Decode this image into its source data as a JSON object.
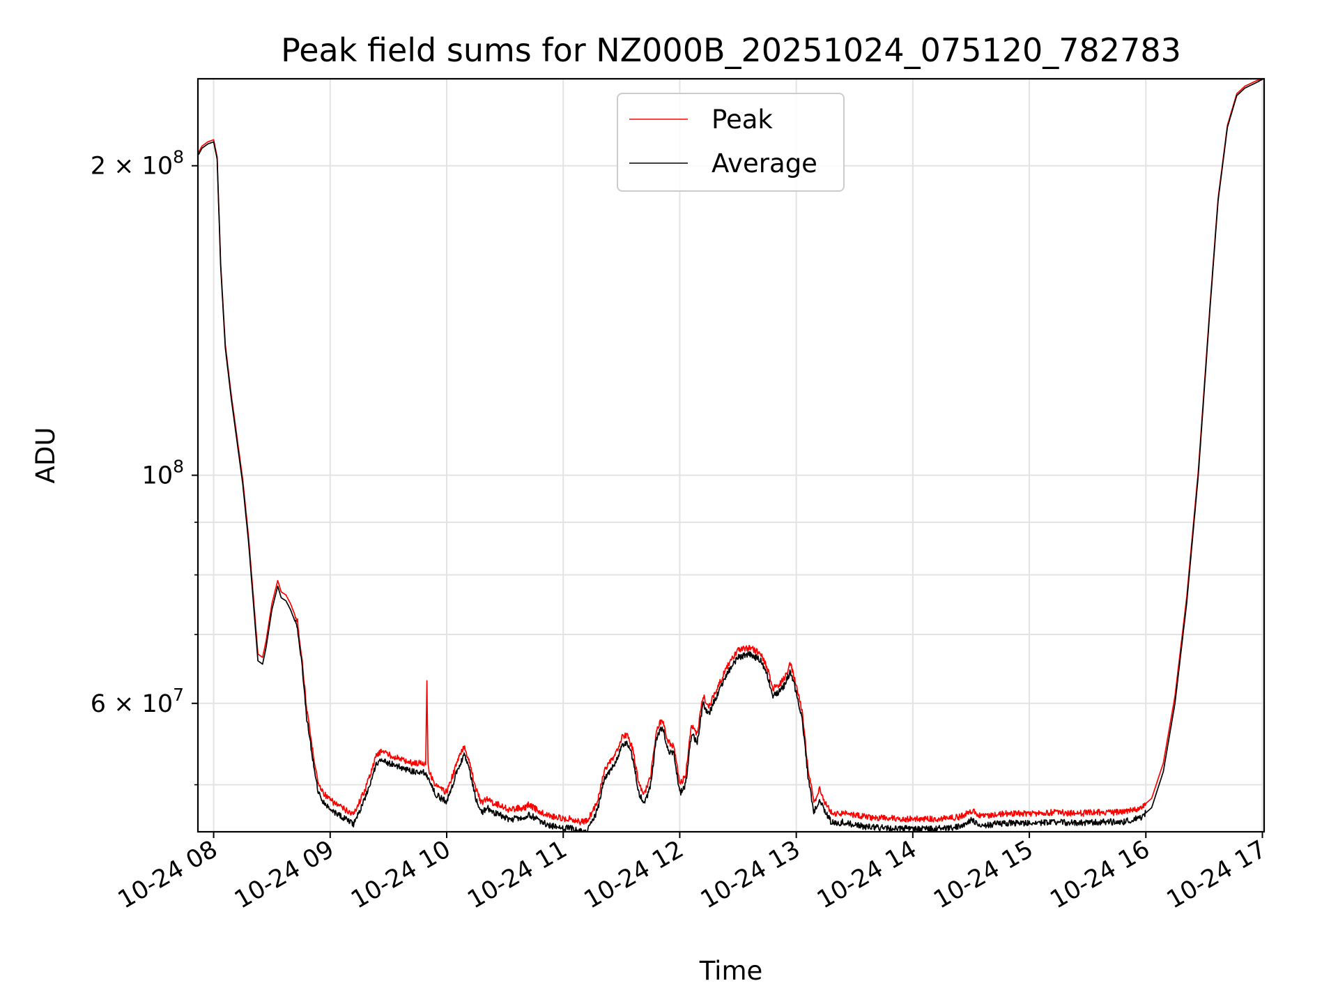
{
  "chart_data": {
    "type": "line",
    "title": "Peak field sums for NZ000B_20251024_075120_782783",
    "xlabel": "Time",
    "ylabel": "ADU",
    "yscale": "log",
    "xlim_hours": [
      7.865,
      17.015
    ],
    "ylim": [
      45000000,
      243000000
    ],
    "grid": true,
    "legend_position": "top-center",
    "x_ticks": [
      {
        "hour": 8,
        "label": "10-24 08"
      },
      {
        "hour": 9,
        "label": "10-24 09"
      },
      {
        "hour": 10,
        "label": "10-24 10"
      },
      {
        "hour": 11,
        "label": "10-24 11"
      },
      {
        "hour": 12,
        "label": "10-24 12"
      },
      {
        "hour": 13,
        "label": "10-24 13"
      },
      {
        "hour": 14,
        "label": "10-24 14"
      },
      {
        "hour": 15,
        "label": "10-24 15"
      },
      {
        "hour": 16,
        "label": "10-24 16"
      },
      {
        "hour": 17,
        "label": "10-24 17"
      }
    ],
    "y_major_ticks": [
      {
        "value": 60000000,
        "mantissa": "6",
        "exponent": "7"
      },
      {
        "value": 100000000,
        "mantissa": "",
        "exponent": "8"
      },
      {
        "value": 200000000,
        "mantissa": "2",
        "exponent": "8"
      }
    ],
    "y_minor_ticks": [
      50000000,
      70000000,
      80000000,
      90000000
    ],
    "times_label_mult": "×",
    "times_label_base": "10",
    "series": [
      {
        "name": "Average",
        "color": "#000000",
        "x": [
          7.87,
          7.9,
          7.95,
          8.0,
          8.03,
          8.06,
          8.1,
          8.15,
          8.2,
          8.25,
          8.3,
          8.35,
          8.38,
          8.42,
          8.45,
          8.5,
          8.55,
          8.58,
          8.62,
          8.66,
          8.72,
          8.76,
          8.8,
          8.85,
          8.9,
          8.95,
          9.0,
          9.1,
          9.2,
          9.3,
          9.4,
          9.45,
          9.5,
          9.6,
          9.7,
          9.8,
          9.85,
          9.9,
          9.95,
          10.0,
          10.05,
          10.1,
          10.15,
          10.2,
          10.25,
          10.3,
          10.35,
          10.4,
          10.45,
          10.5,
          10.55,
          10.6,
          10.65,
          10.7,
          10.75,
          10.8,
          10.85,
          10.9,
          10.95,
          11.0,
          11.05,
          11.1,
          11.15,
          11.2,
          11.25,
          11.3,
          11.35,
          11.4,
          11.45,
          11.5,
          11.55,
          11.6,
          11.65,
          11.7,
          11.75,
          11.8,
          11.85,
          11.9,
          11.95,
          12.0,
          12.05,
          12.1,
          12.15,
          12.2,
          12.25,
          12.3,
          12.35,
          12.4,
          12.5,
          12.6,
          12.7,
          12.75,
          12.8,
          12.85,
          12.9,
          12.95,
          13.0,
          13.05,
          13.1,
          13.15,
          13.2,
          13.25,
          13.3,
          13.35,
          13.4,
          13.5,
          13.6,
          13.8,
          14.0,
          14.2,
          14.4,
          14.5,
          14.6,
          14.7,
          14.8,
          15.0,
          15.2,
          15.4,
          15.6,
          15.8,
          15.95,
          16.05,
          16.15,
          16.25,
          16.35,
          16.45,
          16.55,
          16.62,
          16.7,
          16.78,
          16.85,
          16.95,
          17.01
        ],
        "values": [
          205000000,
          208000000,
          210000000,
          211000000,
          203000000,
          160000000,
          133000000,
          119000000,
          108000000,
          98000000,
          86000000,
          73000000,
          66000000,
          65500000,
          68000000,
          74000000,
          78000000,
          76000000,
          75500000,
          74000000,
          71000000,
          65000000,
          58000000,
          53000000,
          49000000,
          48000000,
          47300000,
          46500000,
          45800000,
          48500000,
          52500000,
          53000000,
          52500000,
          52000000,
          51500000,
          51500000,
          50500000,
          49000000,
          48500000,
          48200000,
          50000000,
          52000000,
          53500000,
          51500000,
          48500000,
          47000000,
          47500000,
          47000000,
          46800000,
          46500000,
          46200000,
          46500000,
          46300000,
          46800000,
          46500000,
          46000000,
          45800000,
          45600000,
          45500000,
          45300000,
          45400000,
          45200000,
          45000000,
          45100000,
          46000000,
          47500000,
          50500000,
          51500000,
          52500000,
          54500000,
          55000000,
          53000000,
          49000000,
          48000000,
          50000000,
          55500000,
          57000000,
          54000000,
          53500000,
          49000000,
          50000000,
          56000000,
          55000000,
          60000000,
          58500000,
          60500000,
          62000000,
          64000000,
          66500000,
          67000000,
          66000000,
          64000000,
          61000000,
          61500000,
          62500000,
          64500000,
          61500000,
          58000000,
          51000000,
          47000000,
          48500000,
          47000000,
          46000000,
          45800000,
          46000000,
          45700000,
          45500000,
          45400000,
          45300000,
          45300000,
          45500000,
          46200000,
          45600000,
          45800000,
          45900000,
          45900000,
          46000000,
          45900000,
          46000000,
          46000000,
          46400000,
          47500000,
          51500000,
          60000000,
          75000000,
          100000000,
          145000000,
          185000000,
          218000000,
          234000000,
          238000000,
          241000000,
          243000000
        ]
      },
      {
        "name": "Peak",
        "color": "#ff0000",
        "x": [
          7.87,
          7.9,
          7.95,
          8.0,
          8.03,
          8.06,
          8.1,
          8.15,
          8.2,
          8.25,
          8.3,
          8.35,
          8.38,
          8.42,
          8.45,
          8.5,
          8.55,
          8.58,
          8.62,
          8.66,
          8.72,
          8.76,
          8.8,
          8.85,
          8.9,
          8.95,
          9.0,
          9.1,
          9.2,
          9.3,
          9.4,
          9.45,
          9.5,
          9.6,
          9.7,
          9.8,
          9.82,
          9.83,
          9.84,
          9.85,
          9.9,
          9.95,
          10.0,
          10.05,
          10.1,
          10.15,
          10.2,
          10.25,
          10.3,
          10.35,
          10.4,
          10.45,
          10.5,
          10.55,
          10.6,
          10.65,
          10.7,
          10.75,
          10.8,
          10.85,
          10.9,
          10.95,
          11.0,
          11.05,
          11.1,
          11.15,
          11.2,
          11.25,
          11.3,
          11.35,
          11.4,
          11.45,
          11.5,
          11.55,
          11.6,
          11.65,
          11.7,
          11.75,
          11.8,
          11.85,
          11.9,
          11.95,
          12.0,
          12.05,
          12.1,
          12.15,
          12.2,
          12.25,
          12.3,
          12.35,
          12.4,
          12.5,
          12.6,
          12.7,
          12.75,
          12.8,
          12.85,
          12.9,
          12.95,
          13.0,
          13.05,
          13.1,
          13.15,
          13.2,
          13.25,
          13.3,
          13.35,
          13.4,
          13.5,
          13.6,
          13.8,
          14.0,
          14.2,
          14.4,
          14.5,
          14.6,
          14.7,
          14.8,
          15.0,
          15.2,
          15.4,
          15.6,
          15.8,
          15.95,
          16.05,
          16.15,
          16.25,
          16.35,
          16.45,
          16.55,
          16.62,
          16.7,
          16.78,
          16.85,
          16.95,
          17.01
        ],
        "values": [
          206000000,
          209000000,
          211000000,
          212000000,
          204000000,
          161000000,
          134000000,
          120000000,
          109000000,
          99000000,
          87000000,
          74000000,
          67000000,
          66500000,
          69000000,
          75000000,
          79000000,
          77000000,
          76500000,
          75000000,
          72000000,
          66000000,
          59000000,
          54000000,
          50000000,
          49000000,
          48300000,
          47500000,
          46800000,
          49500000,
          53500000,
          54000000,
          53500000,
          53000000,
          52500000,
          52500000,
          52500000,
          63000000,
          52500000,
          51500000,
          50000000,
          49500000,
          49200000,
          51000000,
          53000000,
          54500000,
          52500000,
          49500000,
          48000000,
          48500000,
          48000000,
          47800000,
          47500000,
          47200000,
          47500000,
          47300000,
          47800000,
          47500000,
          47000000,
          46800000,
          46600000,
          46500000,
          46300000,
          46400000,
          46200000,
          46000000,
          46100000,
          47000000,
          48500000,
          51500000,
          52500000,
          53500000,
          55500000,
          56000000,
          54000000,
          50000000,
          49000000,
          51000000,
          56500000,
          58000000,
          55000000,
          54500000,
          50000000,
          51000000,
          57000000,
          56000000,
          61000000,
          59500000,
          61500000,
          63000000,
          65000000,
          67500000,
          68000000,
          67000000,
          65000000,
          62000000,
          62500000,
          63500000,
          65500000,
          62500000,
          59000000,
          52000000,
          48000000,
          49500000,
          48000000,
          47000000,
          46800000,
          47000000,
          46700000,
          46500000,
          46400000,
          46300000,
          46300000,
          46500000,
          47200000,
          46600000,
          46800000,
          46900000,
          46900000,
          47000000,
          46900000,
          47000000,
          47000000,
          47400000,
          48500000,
          52500000,
          61000000,
          76000000,
          101000000,
          146000000,
          186000000,
          219000000,
          235000000,
          239000000,
          242000000,
          243000000
        ]
      }
    ]
  }
}
